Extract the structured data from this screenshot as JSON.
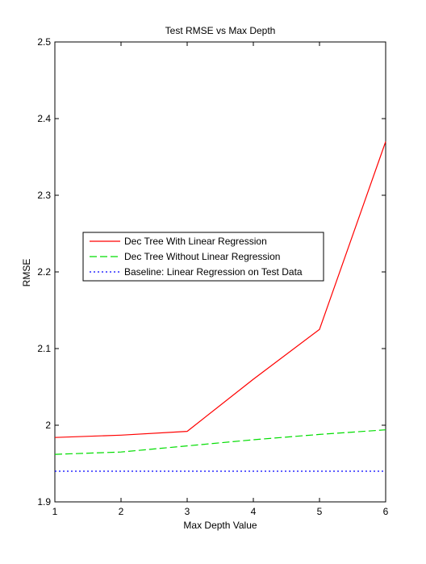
{
  "chart_data": {
    "type": "line",
    "title": "Test RMSE vs Max Depth",
    "xlabel": "Max Depth Value",
    "ylabel": "RMSE",
    "xlim": [
      1,
      6
    ],
    "ylim": [
      1.9,
      2.5
    ],
    "xticks": [
      1,
      2,
      3,
      4,
      5,
      6
    ],
    "yticks": [
      1.9,
      2.0,
      2.1,
      2.2,
      2.3,
      2.4,
      2.5
    ],
    "ytick_labels": [
      "1.9",
      "2",
      "2.1",
      "2.2",
      "2.3",
      "2.4",
      "2.5"
    ],
    "grid": false,
    "legend_position": "middle-left",
    "series": [
      {
        "name": "Dec Tree With Linear Regression",
        "color": "#ff0000",
        "style": "solid",
        "x": [
          1,
          2,
          3,
          4,
          5,
          6
        ],
        "y": [
          1.984,
          1.987,
          1.992,
          2.06,
          2.125,
          2.37
        ]
      },
      {
        "name": "Dec Tree Without Linear Regression",
        "color": "#00dd00",
        "style": "dashed",
        "x": [
          1,
          2,
          3,
          4,
          5,
          6
        ],
        "y": [
          1.962,
          1.965,
          1.973,
          1.981,
          1.988,
          1.994
        ]
      },
      {
        "name": "Baseline: Linear Regression on Test Data",
        "color": "#0000ff",
        "style": "dotted",
        "x": [
          1,
          6
        ],
        "y": [
          1.94,
          1.94
        ]
      }
    ]
  }
}
